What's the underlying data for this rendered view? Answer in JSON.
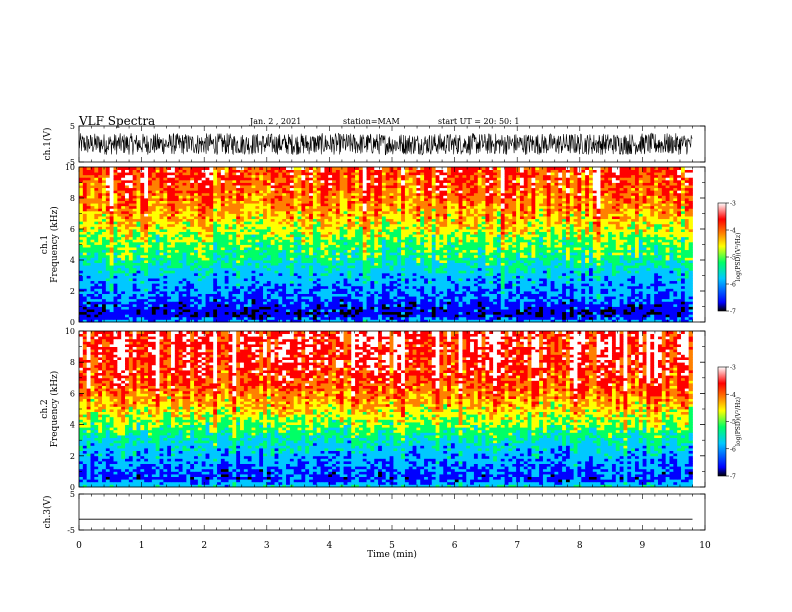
{
  "header": {
    "title": "VLF Spectra",
    "date": "Jan. 2 , 2021",
    "station": "station=MAM",
    "start": "start UT =  20: 50: 1"
  },
  "chart_data": [
    {
      "type": "line",
      "panel": "ch1-waveform",
      "ylabel": "ch.1(V)",
      "ylim": [
        -5,
        5
      ],
      "yticks": [
        "5",
        "-5"
      ],
      "xlim": [
        0,
        10
      ],
      "series": [
        {
          "values_description_free": true,
          "y_range": [
            -3,
            3
          ]
        }
      ]
    },
    {
      "type": "heatmap",
      "panel": "ch1-spectrogram",
      "ylabel_line1": "ch.1",
      "ylabel_line2": "Frequency (kHz)",
      "ylim": [
        0,
        10
      ],
      "yticks": [
        "0",
        "2",
        "4",
        "6",
        "8",
        "10"
      ],
      "xlim": [
        0,
        10
      ],
      "data_end_min": 9.8,
      "levels_by_frequency_khz": [
        {
          "freq": 0.0,
          "level": -6.0
        },
        {
          "freq": 0.5,
          "level": -6.8
        },
        {
          "freq": 1.5,
          "level": -6.3
        },
        {
          "freq": 3.0,
          "level": -5.9
        },
        {
          "freq": 4.2,
          "level": -5.3
        },
        {
          "freq": 5.5,
          "level": -4.9
        },
        {
          "freq": 7.0,
          "level": -4.3
        },
        {
          "freq": 8.5,
          "level": -3.9
        },
        {
          "freq": 10.0,
          "level": -3.7
        }
      ],
      "colorbar": {
        "label": "log(PSD)(V²/Hz)",
        "range": [
          -7,
          -3
        ],
        "ticks": [
          "-3",
          "-4",
          "-5",
          "-6",
          "-7"
        ],
        "colors": [
          "#000000",
          "#0000ff",
          "#00c8ff",
          "#00ff66",
          "#ffff00",
          "#ff8000",
          "#ff0000",
          "#ffffff"
        ]
      }
    },
    {
      "type": "heatmap",
      "panel": "ch2-spectrogram",
      "ylabel_line1": "ch.2",
      "ylabel_line2": "Frequency (kHz)",
      "ylim": [
        0,
        10
      ],
      "yticks": [
        "0",
        "2",
        "4",
        "6",
        "8",
        "10"
      ],
      "xlim": [
        0,
        10
      ],
      "data_end_min": 9.8,
      "levels_by_frequency_khz": [
        {
          "freq": 0.0,
          "level": -5.6
        },
        {
          "freq": 0.5,
          "level": -6.5
        },
        {
          "freq": 1.5,
          "level": -6.2
        },
        {
          "freq": 3.0,
          "level": -5.6
        },
        {
          "freq": 4.0,
          "level": -5.0
        },
        {
          "freq": 5.0,
          "level": -4.5
        },
        {
          "freq": 6.5,
          "level": -3.9
        },
        {
          "freq": 8.0,
          "level": -3.6
        },
        {
          "freq": 10.0,
          "level": -3.5
        }
      ],
      "colorbar": {
        "label": "log(PSD)(V²/Hz)",
        "range": [
          -7,
          -3
        ],
        "ticks": [
          "-3",
          "-4",
          "-5",
          "-6",
          "-7"
        ],
        "colors": [
          "#000000",
          "#0000ff",
          "#00c8ff",
          "#00ff66",
          "#ffff00",
          "#ff8000",
          "#ff0000",
          "#ffffff"
        ]
      }
    },
    {
      "type": "line",
      "panel": "ch3-waveform",
      "ylabel": "ch.3(V)",
      "ylim": [
        -5,
        5
      ],
      "yticks": [
        "5",
        "-5"
      ],
      "xlim": [
        0,
        10
      ],
      "series": [
        {
          "x": [
            0,
            9.8
          ],
          "y": [
            -2,
            -2
          ]
        }
      ]
    }
  ],
  "xaxis": {
    "label": "Time (min)",
    "range": [
      0,
      10
    ],
    "ticks": [
      "0",
      "1",
      "2",
      "3",
      "4",
      "5",
      "6",
      "7",
      "8",
      "9",
      "10"
    ]
  }
}
